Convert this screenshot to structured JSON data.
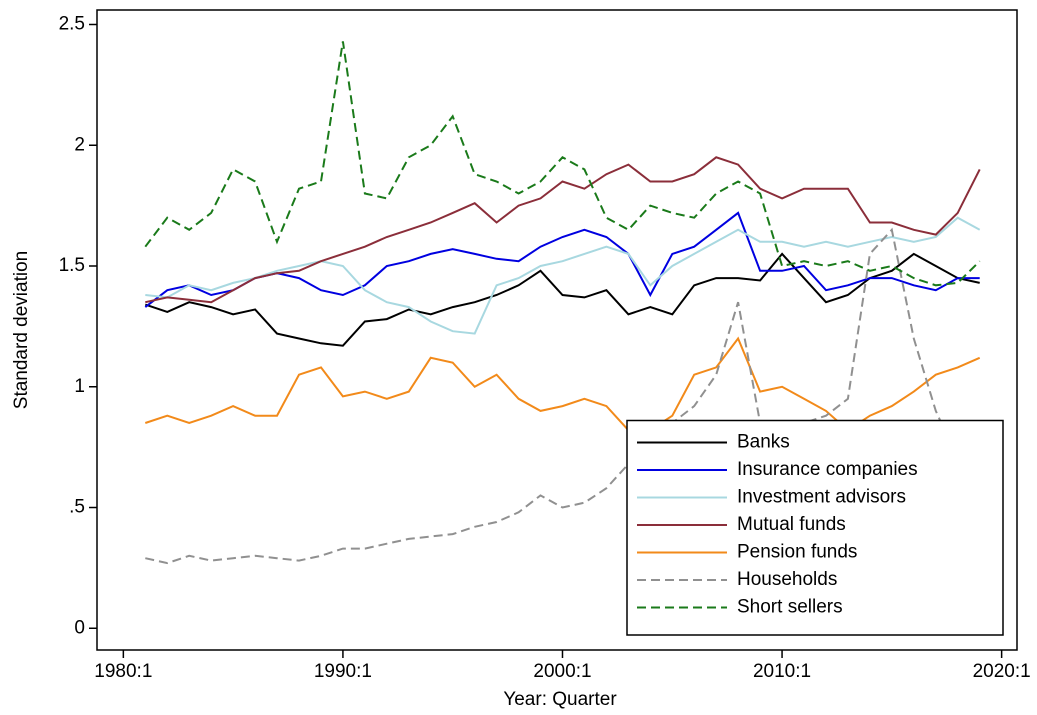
{
  "chart_data": {
    "type": "line",
    "x_label": "Year: Quarter",
    "y_label": "Standard deviation",
    "xlim": [
      1978.8,
      2020.7
    ],
    "ylim": [
      -0.09,
      2.56
    ],
    "xticks": [
      {
        "value": 1980,
        "label": "1980:1"
      },
      {
        "value": 1990,
        "label": "1990:1"
      },
      {
        "value": 2000,
        "label": "2000:1"
      },
      {
        "value": 2010,
        "label": "2010:1"
      },
      {
        "value": 2020,
        "label": "2020:1"
      }
    ],
    "yticks": [
      0,
      {
        "value": 0.5,
        "label": ".5"
      },
      1,
      1.5,
      2,
      2.5
    ],
    "grid": false,
    "legend": "lower right",
    "x": [
      1981,
      1982,
      1983,
      1984,
      1985,
      1986,
      1987,
      1988,
      1989,
      1990,
      1991,
      1992,
      1993,
      1994,
      1995,
      1996,
      1997,
      1998,
      1999,
      2000,
      2001,
      2002,
      2003,
      2004,
      2005,
      2006,
      2007,
      2008,
      2009,
      2010,
      2011,
      2012,
      2013,
      2014,
      2015,
      2016,
      2017,
      2018,
      2019
    ],
    "series": [
      {
        "name": "Banks",
        "color": "#000000",
        "dash": false,
        "values": [
          1.34,
          1.31,
          1.35,
          1.33,
          1.3,
          1.32,
          1.22,
          1.2,
          1.18,
          1.17,
          1.27,
          1.28,
          1.32,
          1.3,
          1.33,
          1.35,
          1.38,
          1.42,
          1.48,
          1.38,
          1.37,
          1.4,
          1.3,
          1.33,
          1.3,
          1.42,
          1.45,
          1.45,
          1.44,
          1.55,
          1.45,
          1.35,
          1.38,
          1.45,
          1.48,
          1.55,
          1.5,
          1.45,
          1.43
        ]
      },
      {
        "name": "Insurance companies",
        "color": "#0000e0",
        "dash": false,
        "values": [
          1.33,
          1.4,
          1.42,
          1.38,
          1.4,
          1.45,
          1.47,
          1.45,
          1.4,
          1.38,
          1.42,
          1.5,
          1.52,
          1.55,
          1.57,
          1.55,
          1.53,
          1.52,
          1.58,
          1.62,
          1.65,
          1.62,
          1.55,
          1.38,
          1.55,
          1.58,
          1.65,
          1.72,
          1.48,
          1.48,
          1.5,
          1.4,
          1.42,
          1.45,
          1.45,
          1.42,
          1.4,
          1.45,
          1.45
        ]
      },
      {
        "name": "Investment advisors",
        "color": "#a8d8e0",
        "dash": false,
        "values": [
          1.38,
          1.37,
          1.42,
          1.4,
          1.43,
          1.45,
          1.48,
          1.5,
          1.52,
          1.5,
          1.4,
          1.35,
          1.33,
          1.27,
          1.23,
          1.22,
          1.42,
          1.45,
          1.5,
          1.52,
          1.55,
          1.58,
          1.55,
          1.42,
          1.5,
          1.55,
          1.6,
          1.65,
          1.6,
          1.6,
          1.58,
          1.6,
          1.58,
          1.6,
          1.62,
          1.6,
          1.62,
          1.7,
          1.65
        ]
      },
      {
        "name": "Mutual funds",
        "color": "#8b2e3a",
        "dash": false,
        "values": [
          1.35,
          1.37,
          1.36,
          1.35,
          1.4,
          1.45,
          1.47,
          1.48,
          1.52,
          1.55,
          1.58,
          1.62,
          1.65,
          1.68,
          1.72,
          1.76,
          1.68,
          1.75,
          1.78,
          1.85,
          1.82,
          1.88,
          1.92,
          1.85,
          1.85,
          1.88,
          1.95,
          1.92,
          1.82,
          1.78,
          1.82,
          1.82,
          1.82,
          1.68,
          1.68,
          1.65,
          1.63,
          1.72,
          1.9
        ]
      },
      {
        "name": "Pension funds",
        "color": "#f28a1a",
        "dash": false,
        "values": [
          0.85,
          0.88,
          0.85,
          0.88,
          0.92,
          0.88,
          0.88,
          1.05,
          1.08,
          0.96,
          0.98,
          0.95,
          0.98,
          1.12,
          1.1,
          1.0,
          1.05,
          0.95,
          0.9,
          0.92,
          0.95,
          0.92,
          0.82,
          0.82,
          0.88,
          1.05,
          1.08,
          1.2,
          0.98,
          1.0,
          0.95,
          0.9,
          0.82,
          0.88,
          0.92,
          0.98,
          1.05,
          1.08,
          1.12
        ]
      },
      {
        "name": "Households",
        "color": "#909090",
        "dash": true,
        "values": [
          0.29,
          0.27,
          0.3,
          0.28,
          0.29,
          0.3,
          0.29,
          0.28,
          0.3,
          0.33,
          0.33,
          0.35,
          0.37,
          0.38,
          0.39,
          0.42,
          0.44,
          0.48,
          0.55,
          0.5,
          0.52,
          0.58,
          0.68,
          0.75,
          0.85,
          0.92,
          1.05,
          1.35,
          0.85,
          0.8,
          0.85,
          0.88,
          0.95,
          1.55,
          1.65,
          1.2,
          0.9,
          0.7,
          0.6
        ]
      },
      {
        "name": "Short sellers",
        "color": "#1a7a1a",
        "dash": true,
        "values": [
          1.58,
          1.7,
          1.65,
          1.72,
          1.9,
          1.85,
          1.6,
          1.82,
          1.85,
          2.43,
          1.8,
          1.78,
          1.95,
          2.0,
          2.12,
          1.88,
          1.85,
          1.8,
          1.85,
          1.95,
          1.9,
          1.7,
          1.65,
          1.75,
          1.72,
          1.7,
          1.8,
          1.85,
          1.8,
          1.5,
          1.52,
          1.5,
          1.52,
          1.48,
          1.5,
          1.45,
          1.42,
          1.43,
          1.52
        ]
      }
    ]
  }
}
